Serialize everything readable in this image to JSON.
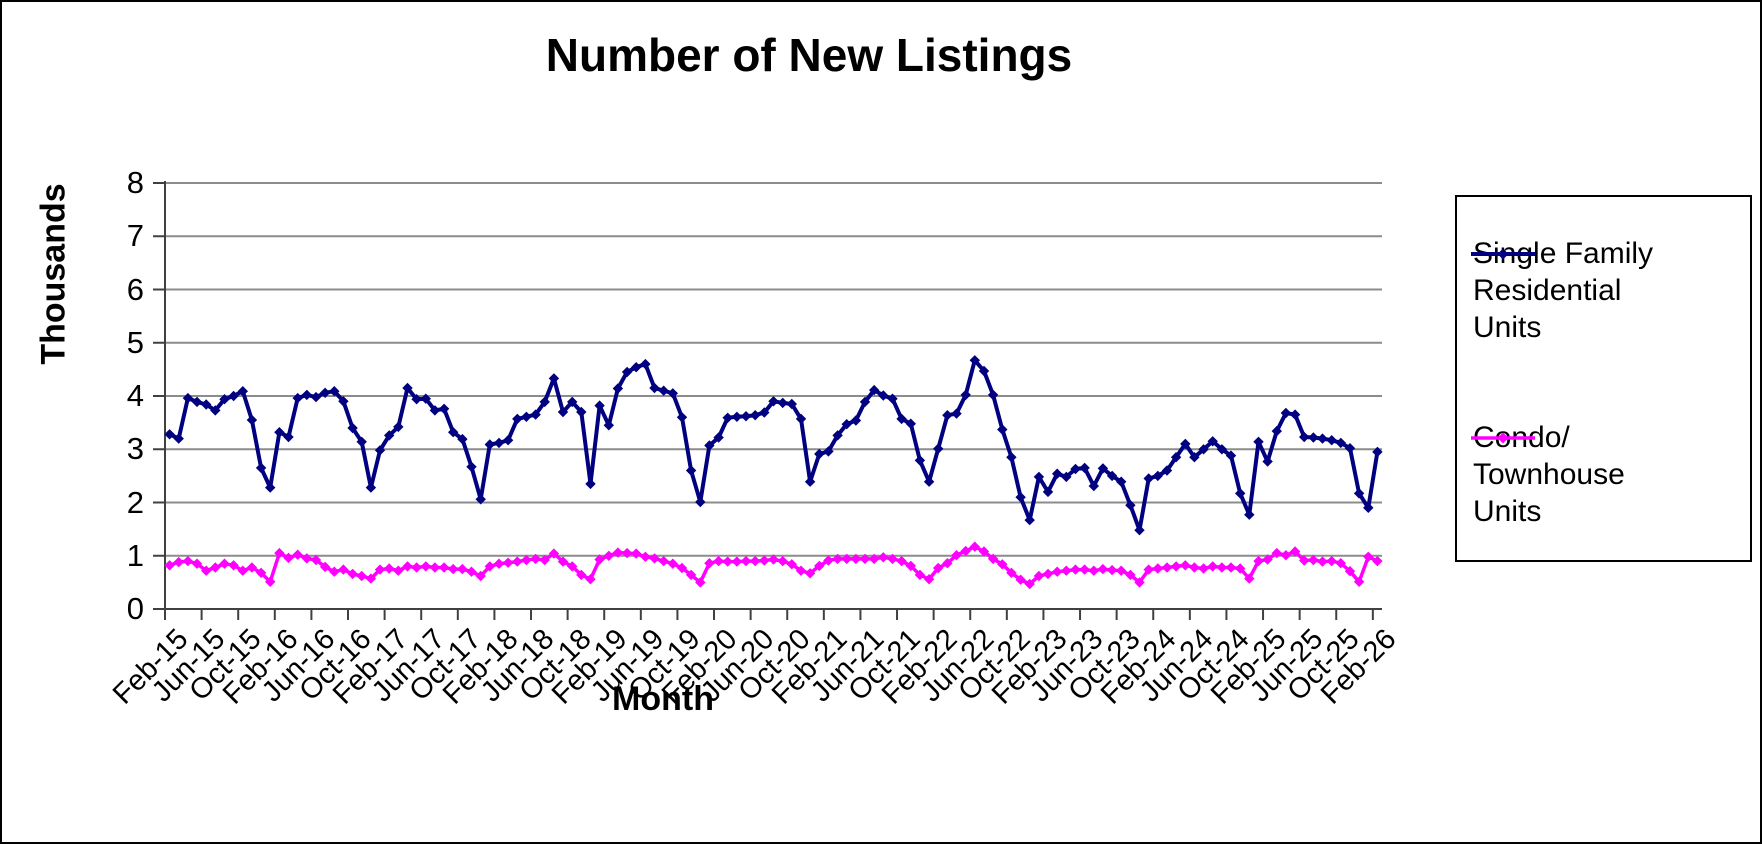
{
  "chart_data": {
    "type": "line",
    "title": "Number of New Listings",
    "xlabel": "Month",
    "ylabel": "Thousands",
    "ylim": [
      0,
      8
    ],
    "yticks": [
      0,
      1,
      2,
      3,
      4,
      5,
      6,
      7,
      8
    ],
    "x_tick_label_every": 4,
    "grid": "horizontal",
    "legend_position": "right",
    "axis_color": "#404040",
    "gridline_color": "#8C8C8C",
    "months": [
      "Feb-15",
      "Mar-15",
      "Apr-15",
      "May-15",
      "Jun-15",
      "Jul-15",
      "Aug-15",
      "Sep-15",
      "Oct-15",
      "Nov-15",
      "Dec-15",
      "Jan-16",
      "Feb-16",
      "Mar-16",
      "Apr-16",
      "May-16",
      "Jun-16",
      "Jul-16",
      "Aug-16",
      "Sep-16",
      "Oct-16",
      "Nov-16",
      "Dec-16",
      "Jan-17",
      "Feb-17",
      "Mar-17",
      "Apr-17",
      "May-17",
      "Jun-17",
      "Jul-17",
      "Aug-17",
      "Sep-17",
      "Oct-17",
      "Nov-17",
      "Dec-17",
      "Jan-18",
      "Feb-18",
      "Mar-18",
      "Apr-18",
      "May-18",
      "Jun-18",
      "Jul-18",
      "Aug-18",
      "Sep-18",
      "Oct-18",
      "Nov-18",
      "Dec-18",
      "Jan-19",
      "Feb-19",
      "Mar-19",
      "Apr-19",
      "May-19",
      "Jun-19",
      "Jul-19",
      "Aug-19",
      "Sep-19",
      "Oct-19",
      "Nov-19",
      "Dec-19",
      "Jan-20",
      "Feb-20",
      "Mar-20",
      "Apr-20",
      "May-20",
      "Jun-20",
      "Jul-20",
      "Aug-20",
      "Sep-20",
      "Oct-20",
      "Nov-20",
      "Dec-20",
      "Jan-21",
      "Feb-21",
      "Mar-21",
      "Apr-21",
      "May-21",
      "Jun-21",
      "Jul-21",
      "Aug-21",
      "Sep-21",
      "Oct-21",
      "Nov-21",
      "Dec-21",
      "Jan-22",
      "Feb-22",
      "Mar-22",
      "Apr-22",
      "May-22",
      "Jun-22",
      "Jul-22",
      "Aug-22",
      "Sep-22",
      "Oct-22",
      "Nov-22",
      "Dec-22",
      "Jan-23",
      "Feb-23",
      "Mar-23",
      "Apr-23",
      "May-23",
      "Jun-23",
      "Jul-23",
      "Aug-23",
      "Sep-23",
      "Oct-23",
      "Nov-23",
      "Dec-23",
      "Jan-24",
      "Feb-24",
      "Mar-24",
      "Apr-24",
      "May-24",
      "Jun-24",
      "Jul-24",
      "Aug-24",
      "Sep-24",
      "Oct-24",
      "Nov-24",
      "Dec-24",
      "Jan-25",
      "Feb-25",
      "Mar-25",
      "Apr-25",
      "May-25",
      "Jun-25",
      "Jul-25",
      "Aug-25",
      "Sep-25",
      "Oct-25",
      "Nov-25",
      "Dec-25",
      "Jan-26",
      "Feb-26"
    ],
    "series": [
      {
        "name": "Single Family Residential Units",
        "legend_lines": "Single Family\nResidential\nUnits",
        "color": "#000080",
        "marker": "diamond",
        "line_width": 4,
        "values": [
          3.28,
          3.2,
          3.96,
          3.89,
          3.84,
          3.73,
          3.94,
          4.0,
          4.09,
          3.55,
          2.65,
          2.28,
          3.32,
          3.23,
          3.96,
          4.02,
          3.98,
          4.06,
          4.09,
          3.9,
          3.4,
          3.14,
          2.28,
          2.98,
          3.26,
          3.42,
          4.15,
          3.94,
          3.95,
          3.73,
          3.76,
          3.32,
          3.19,
          2.67,
          2.06,
          3.09,
          3.12,
          3.17,
          3.57,
          3.61,
          3.65,
          3.89,
          4.33,
          3.7,
          3.89,
          3.7,
          2.35,
          3.82,
          3.45,
          4.14,
          4.45,
          4.54,
          4.6,
          4.15,
          4.1,
          4.05,
          3.6,
          2.6,
          2.01,
          3.07,
          3.22,
          3.59,
          3.61,
          3.62,
          3.64,
          3.69,
          3.9,
          3.87,
          3.85,
          3.57,
          2.39,
          2.91,
          2.96,
          3.26,
          3.47,
          3.54,
          3.89,
          4.11,
          4.01,
          3.95,
          3.57,
          3.48,
          2.79,
          2.39,
          3.01,
          3.64,
          3.67,
          4.02,
          4.67,
          4.47,
          4.02,
          3.37,
          2.85,
          2.1,
          1.67,
          2.48,
          2.2,
          2.54,
          2.48,
          2.63,
          2.65,
          2.31,
          2.64,
          2.5,
          2.39,
          1.95,
          1.48,
          2.45,
          2.5,
          2.6,
          2.85,
          3.1,
          2.85,
          3.0,
          3.15,
          3.0,
          2.88,
          2.17,
          1.77,
          3.14,
          2.77,
          3.34,
          3.68,
          3.65,
          3.23,
          3.22,
          3.2,
          3.17,
          3.12,
          3.02,
          2.17,
          1.9,
          2.95
        ]
      },
      {
        "name": "Condo/ Townhouse Units",
        "legend_lines": "Condo/\nTownhouse\nUnits",
        "color": "#FF00FF",
        "marker": "diamond",
        "line_width": 3.5,
        "values": [
          0.82,
          0.88,
          0.9,
          0.85,
          0.72,
          0.78,
          0.85,
          0.82,
          0.72,
          0.78,
          0.68,
          0.51,
          1.05,
          0.96,
          1.02,
          0.95,
          0.92,
          0.79,
          0.7,
          0.74,
          0.66,
          0.62,
          0.57,
          0.74,
          0.76,
          0.72,
          0.8,
          0.78,
          0.8,
          0.78,
          0.78,
          0.75,
          0.75,
          0.7,
          0.62,
          0.8,
          0.85,
          0.87,
          0.89,
          0.92,
          0.94,
          0.92,
          1.04,
          0.89,
          0.8,
          0.64,
          0.56,
          0.93,
          1.0,
          1.06,
          1.05,
          1.04,
          0.98,
          0.95,
          0.9,
          0.85,
          0.77,
          0.64,
          0.5,
          0.86,
          0.9,
          0.89,
          0.89,
          0.9,
          0.9,
          0.91,
          0.93,
          0.9,
          0.84,
          0.72,
          0.67,
          0.81,
          0.91,
          0.94,
          0.94,
          0.94,
          0.94,
          0.94,
          0.97,
          0.94,
          0.9,
          0.81,
          0.64,
          0.56,
          0.77,
          0.86,
          1.01,
          1.09,
          1.17,
          1.08,
          0.94,
          0.84,
          0.68,
          0.55,
          0.47,
          0.62,
          0.66,
          0.7,
          0.72,
          0.74,
          0.74,
          0.72,
          0.75,
          0.73,
          0.72,
          0.64,
          0.5,
          0.74,
          0.76,
          0.78,
          0.8,
          0.82,
          0.78,
          0.76,
          0.8,
          0.78,
          0.78,
          0.76,
          0.57,
          0.9,
          0.93,
          1.05,
          1.01,
          1.08,
          0.91,
          0.92,
          0.89,
          0.9,
          0.86,
          0.71,
          0.51,
          0.98,
          0.9
        ]
      }
    ]
  }
}
